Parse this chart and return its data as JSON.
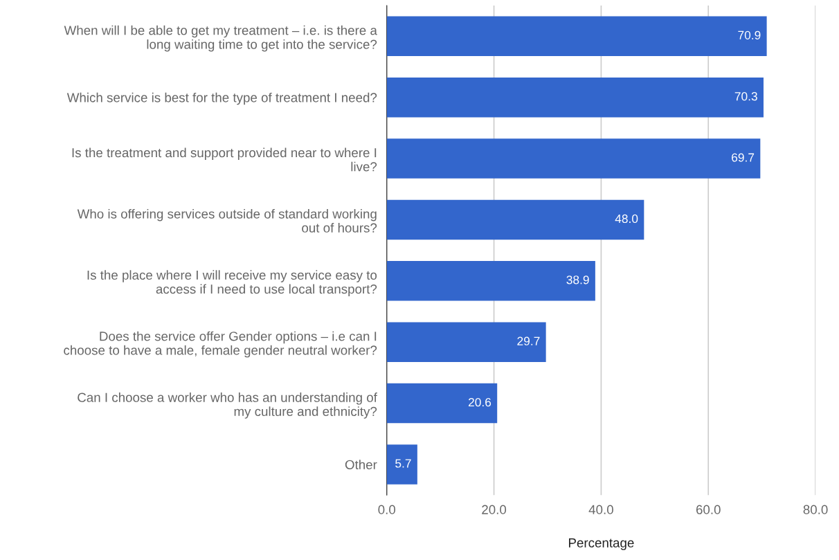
{
  "chart_data": {
    "type": "bar",
    "orientation": "horizontal",
    "xlabel": "Percentage",
    "categories": [
      "When will I be able to get my treatment – i.e. is there a\nlong waiting time to get into the service?",
      "Which service is best for the type of treatment I need?",
      "Is the treatment and support provided near to where I\nlive?",
      "Who is offering services outside of standard working\nout of hours?",
      "Is the place where I will receive my service easy to\naccess if I need to use local transport?",
      "Does the service offer Gender options – i.e can I\nchoose to have a male, female gender neutral worker?",
      "Can I choose a worker who has an understanding of\nmy culture and ethnicity?",
      "Other"
    ],
    "values": [
      70.9,
      70.3,
      69.7,
      48.0,
      38.9,
      29.7,
      20.6,
      5.7
    ],
    "value_labels": [
      "70.9",
      "70.3",
      "69.7",
      "48.0",
      "38.9",
      "29.7",
      "20.6",
      "5.7"
    ],
    "color": "#3366cc",
    "xlim": [
      0,
      80
    ],
    "xticks": [
      {
        "value": 0,
        "label": "0.0"
      },
      {
        "value": 20,
        "label": "20.0"
      },
      {
        "value": 40,
        "label": "40.0"
      },
      {
        "value": 60,
        "label": "60.0"
      },
      {
        "value": 80,
        "label": "80.0"
      }
    ],
    "grid": "x",
    "legend": false
  }
}
